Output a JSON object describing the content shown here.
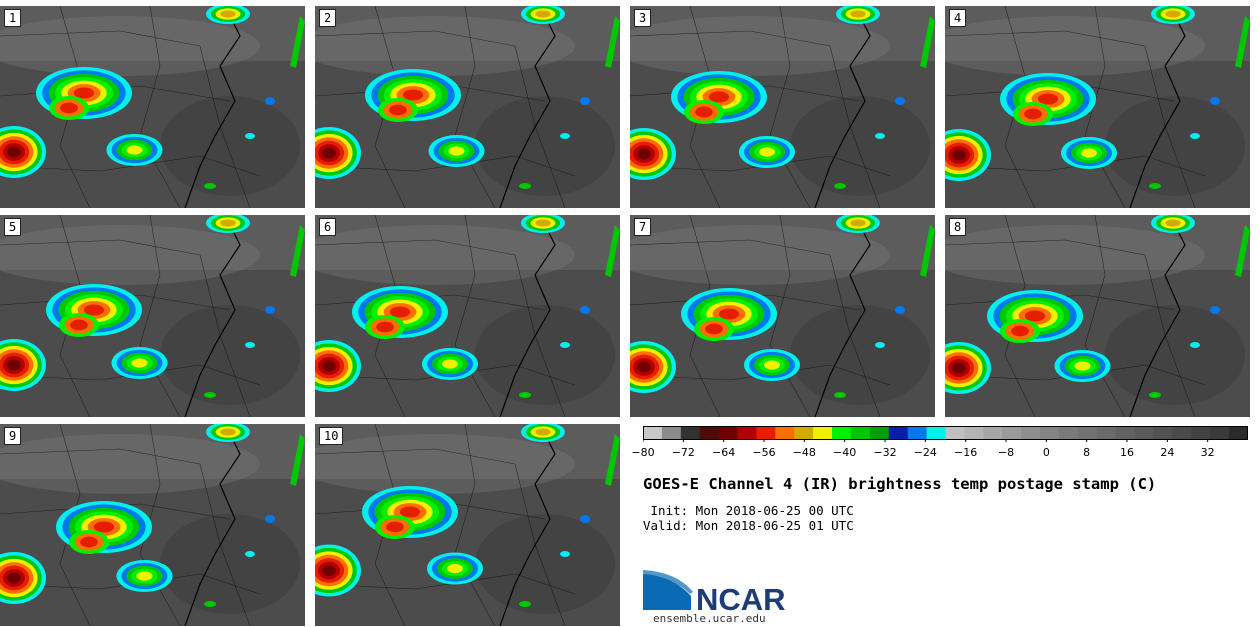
{
  "panels": [
    "1",
    "2",
    "3",
    "4",
    "5",
    "6",
    "7",
    "8",
    "9",
    "10"
  ],
  "colorbar": {
    "colors": [
      "#c8c8c8",
      "#8c8c8c",
      "#323232",
      "#500a0a",
      "#700000",
      "#b40000",
      "#e61e00",
      "#ff6e00",
      "#d2aa00",
      "#f0f000",
      "#00f000",
      "#00c800",
      "#00a000",
      "#0a1eaa",
      "#0078f0",
      "#00f0f0",
      "#c0c0c0",
      "#b4b4b4",
      "#a6a6a6",
      "#9a9a9a",
      "#8e8e8e",
      "#848484",
      "#7a7a7a",
      "#727272",
      "#6a6a6a",
      "#626262",
      "#5a5a5a",
      "#525252",
      "#4a4a4a",
      "#424242",
      "#3a3a3a",
      "#2a2a2a"
    ],
    "min": -80,
    "max": 40,
    "tick_values": [
      -80,
      -72,
      -64,
      -56,
      -48,
      -40,
      -32,
      -24,
      -16,
      -8,
      0,
      8,
      16,
      24,
      32
    ],
    "tick_labels": [
      "−80",
      "−72",
      "−64",
      "−56",
      "−48",
      "−40",
      "−32",
      "−24",
      "−16",
      "−8",
      "0",
      "8",
      "16",
      "24",
      "32"
    ]
  },
  "title": "GOES-E Channel 4 (IR) brightness temp postage stamp (C)",
  "init": " Init: Mon 2018-06-25 00 UTC",
  "valid": "Valid: Mon 2018-06-25 01 UTC",
  "logo": {
    "text": "NCAR",
    "url": "ensemble.ucar.edu"
  }
}
